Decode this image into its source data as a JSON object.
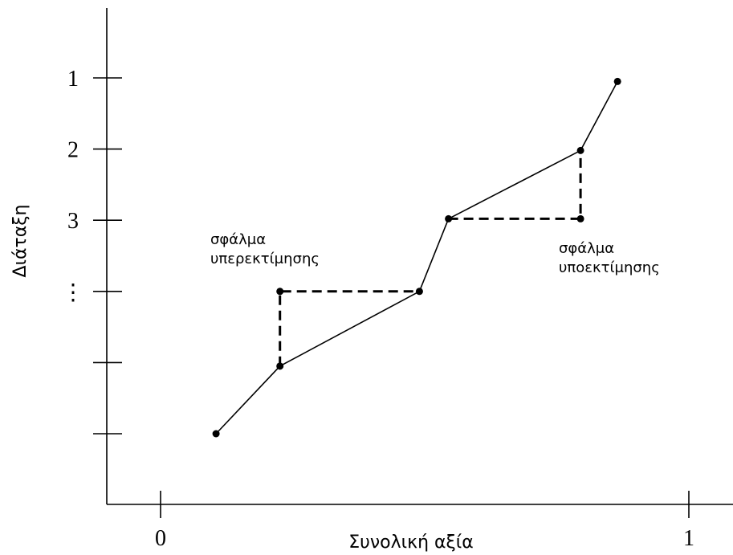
{
  "chart_data": {
    "type": "line",
    "xlabel": "Συνολική αξία",
    "ylabel": "Διάταξη",
    "x_ticks": [
      {
        "value": 0,
        "label": "0"
      },
      {
        "value": 1,
        "label": "1"
      }
    ],
    "y_ticks": [
      {
        "rank": 1,
        "label": "1"
      },
      {
        "rank": 2,
        "label": "2"
      },
      {
        "rank": 3,
        "label": "3"
      },
      {
        "rank": 4,
        "label": "⋮"
      },
      {
        "rank": 5,
        "label": ""
      },
      {
        "rank": 6,
        "label": ""
      }
    ],
    "xlim": [
      -0.1,
      1.08
    ],
    "ylim": [
      0.05,
      7.0
    ],
    "series": [
      {
        "points": [
          {
            "x": 0.105,
            "rank": 6.0
          },
          {
            "x": 0.226,
            "rank": 5.05
          },
          {
            "x": 0.49,
            "rank": 4.0
          },
          {
            "x": 0.545,
            "rank": 2.98
          },
          {
            "x": 0.795,
            "rank": 2.02
          },
          {
            "x": 0.865,
            "rank": 1.05
          }
        ]
      }
    ],
    "error_markers": [
      {
        "label_lines": [
          "σφάλμα",
          "υπερεκτίμησης"
        ],
        "path": [
          {
            "x": 0.226,
            "rank": 5.05
          },
          {
            "x": 0.226,
            "rank": 4.0
          },
          {
            "x": 0.49,
            "rank": 4.0
          }
        ],
        "corner": {
          "x": 0.226,
          "rank": 4.0
        }
      },
      {
        "label_lines": [
          "σφάλμα",
          "υποεκτίμησης"
        ],
        "path": [
          {
            "x": 0.545,
            "rank": 2.98
          },
          {
            "x": 0.795,
            "rank": 2.98
          },
          {
            "x": 0.795,
            "rank": 2.02
          }
        ],
        "corner": {
          "x": 0.795,
          "rank": 2.98
        }
      }
    ],
    "grid": false,
    "legend": "none"
  }
}
